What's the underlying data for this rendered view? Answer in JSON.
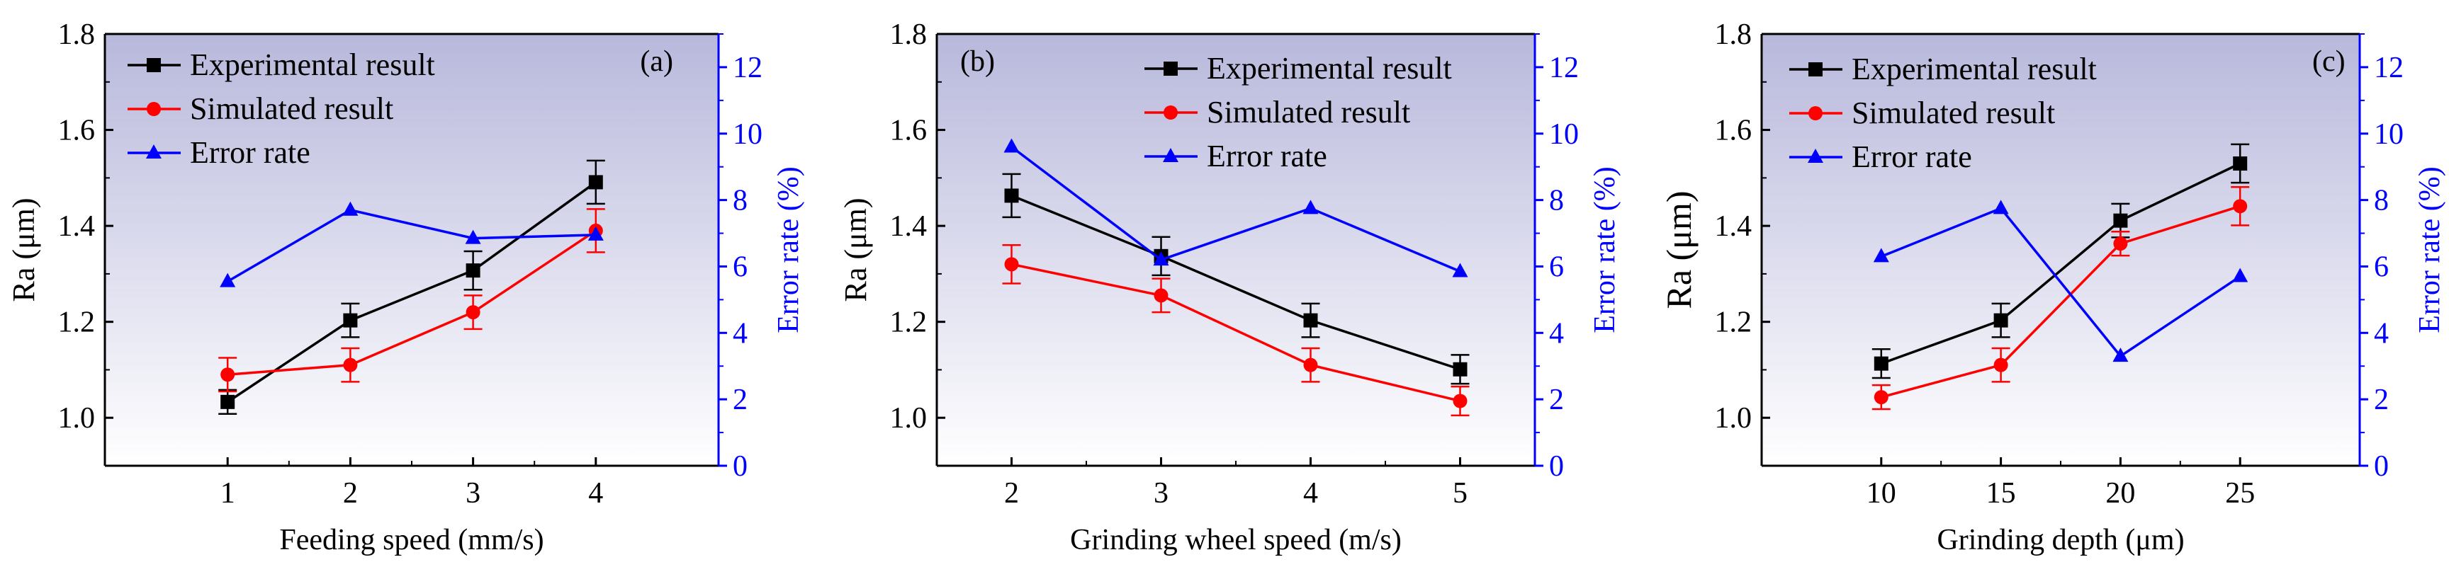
{
  "chart_data": [
    {
      "type": "line",
      "panel_label": "(a)",
      "xlabel": "Feeding speed (mm/s)",
      "ylabel": "Ra (μm)",
      "y2label": "Error rate (%)",
      "xlim": [
        0,
        5
      ],
      "xticks": [
        1,
        2,
        3,
        4
      ],
      "ylim": [
        0.9,
        1.8
      ],
      "yticks": [
        "1.0",
        "1.2",
        "1.4",
        "1.6",
        "1.8"
      ],
      "y2lim": [
        0,
        13
      ],
      "y2ticks": [
        "0",
        "2",
        "4",
        "6",
        "8",
        "10",
        "12"
      ],
      "x": [
        1,
        2,
        3,
        4
      ],
      "series": [
        {
          "name": "Experimental result",
          "axis": "left",
          "color": "#000000",
          "marker": "square",
          "values": [
            1.033,
            1.203,
            1.307,
            1.491
          ],
          "errors": [
            0.025,
            0.035,
            0.04,
            0.045
          ]
        },
        {
          "name": "Simulated result",
          "axis": "left",
          "color": "#ff0000",
          "marker": "circle",
          "values": [
            1.09,
            1.11,
            1.22,
            1.39
          ],
          "errors": [
            0.035,
            0.035,
            0.035,
            0.045
          ]
        },
        {
          "name": "Error rate",
          "axis": "right",
          "color": "#0000ff",
          "marker": "triangle",
          "values": [
            5.55,
            7.7,
            6.85,
            6.95
          ]
        }
      ]
    },
    {
      "type": "line",
      "panel_label": "(b)",
      "xlabel": "Grinding wheel speed (m/s)",
      "ylabel": "Ra (μm)",
      "y2label": "Error rate (%)",
      "xlim": [
        1.5,
        5.5
      ],
      "xticks": [
        2,
        3,
        4,
        5
      ],
      "ylim": [
        0.9,
        1.8
      ],
      "yticks": [
        "1.0",
        "1.2",
        "1.4",
        "1.6",
        "1.8"
      ],
      "y2lim": [
        0,
        13
      ],
      "y2ticks": [
        "0",
        "2",
        "4",
        "6",
        "8",
        "10",
        "12"
      ],
      "x": [
        2,
        3,
        4,
        5
      ],
      "series": [
        {
          "name": "Experimental result",
          "axis": "left",
          "color": "#000000",
          "marker": "square",
          "values": [
            1.463,
            1.337,
            1.203,
            1.101
          ],
          "errors": [
            0.045,
            0.04,
            0.035,
            0.03
          ]
        },
        {
          "name": "Simulated result",
          "axis": "left",
          "color": "#ff0000",
          "marker": "circle",
          "values": [
            1.32,
            1.255,
            1.11,
            1.035
          ],
          "errors": [
            0.04,
            0.035,
            0.035,
            0.03
          ]
        },
        {
          "name": "Error rate",
          "axis": "right",
          "color": "#0000ff",
          "marker": "triangle",
          "values": [
            9.6,
            6.2,
            7.75,
            5.85
          ]
        }
      ]
    },
    {
      "type": "line",
      "panel_label": "(c)",
      "xlabel": "Grinding depth (μm)",
      "ylabel": "Ra (μm)",
      "y2label": "Error rate (%)",
      "xlim": [
        5,
        30
      ],
      "xticks": [
        10,
        15,
        20,
        25
      ],
      "ylim": [
        0.9,
        1.8
      ],
      "yticks": [
        "1.0",
        "1.2",
        "1.4",
        "1.6",
        "1.8"
      ],
      "y2lim": [
        0,
        13
      ],
      "y2ticks": [
        "0",
        "2",
        "4",
        "6",
        "8",
        "10",
        "12"
      ],
      "x": [
        10,
        15,
        20,
        25
      ],
      "series": [
        {
          "name": "Experimental result",
          "axis": "left",
          "color": "#000000",
          "marker": "square",
          "values": [
            1.113,
            1.203,
            1.411,
            1.53
          ],
          "errors": [
            0.03,
            0.035,
            0.035,
            0.04
          ]
        },
        {
          "name": "Simulated result",
          "axis": "left",
          "color": "#ff0000",
          "marker": "circle",
          "values": [
            1.043,
            1.11,
            1.363,
            1.441
          ],
          "errors": [
            0.025,
            0.035,
            0.025,
            0.04
          ]
        },
        {
          "name": "Error rate",
          "axis": "right",
          "color": "#0000ff",
          "marker": "triangle",
          "values": [
            6.3,
            7.75,
            3.3,
            5.7
          ]
        }
      ]
    }
  ]
}
